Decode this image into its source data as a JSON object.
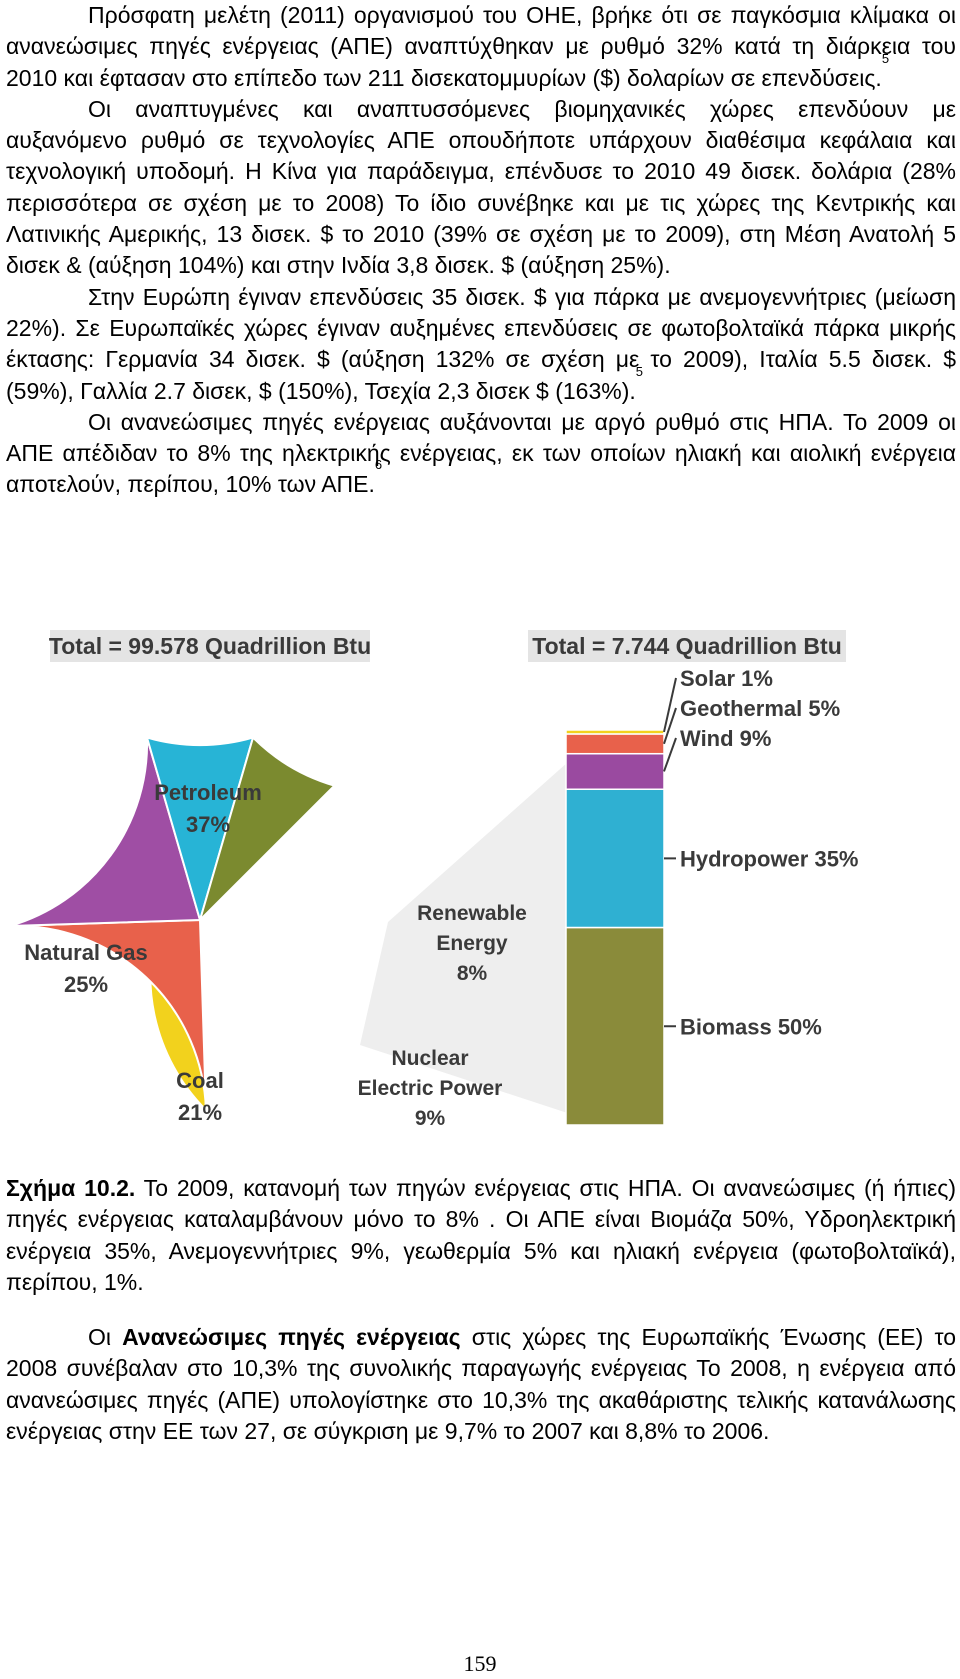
{
  "text": {
    "p1": "Πρόσφατη μελέτη (2011) οργανισμού του ΟΗΕ, βρήκε ότι σε παγκόσμια κλίμακα οι ανανεώσιμες πηγές ενέργειας (ΑΠΕ) αναπτύχθηκαν με ρυθμό 32% κατά τη διάρκεια του 2010 και έφτασαν στο επίπεδο των 211 δισεκατομμυρίων ($) δολαρίων σε επενδύσεις.",
    "p1_ref": "5",
    "p2": "Οι αναπτυγμένες και αναπτυσσόμενες βιομηχανικές χώρες επενδύουν με αυξανόμενο ρυθμό σε τεχνολογίες ΑΠΕ οπουδήποτε υπάρχουν διαθέσιμα κεφάλαια και τεχνολογική υποδομή. Η Κίνα για παράδειγμα, επένδυσε το 2010 49 δισεκ. δολάρια (28% περισσότερα σε σχέση με το 2008) Το ίδιο συνέβηκε και με τις χώρες της Κεντρικής και Λατινικής Αμερικής, 13 δισεκ. $ το 2010 (39% σε σχέση με το 2009), στη Μέση Ανατολή 5 δισεκ & (αύξηση 104%) και στην Ινδία 3,8 δισεκ. $ (αύξηση 25%).",
    "p3": "Στην Ευρώπη έγιναν επενδύσεις 35 δισεκ. $ για πάρκα με ανεμογεννήτριες (μείωση 22%). Σε Ευρωπαϊκές χώρες έγιναν αυξημένες επενδύσεις σε φωτοβολταϊκά πάρκα μικρής έκτασης: Γερμανία 34 δισεκ. $ (αύξηση 132% σε σχέση με το 2009), Ιταλία 5.5 δισεκ. $ (59%), Γαλλία 2.7 δισεκ, $ (150%), Τσεχία 2,3 δισεκ $ (163%).",
    "p3_ref": "5",
    "p4": "Οι ανανεώσιμες πηγές ενέργειας αυξάνονται με αργό ρυθμό στις ΗΠΑ. Το 2009 οι ΑΠΕ απέδιδαν το 8% της ηλεκτρικής ενέργειας, εκ των οποίων ηλιακή και αιολική ενέργεια αποτελούν, περίπου, 10% των ΑΠΕ.",
    "p4_ref": "6",
    "caption_label": "Σχήμα 10.2.",
    "caption_text": " Το 2009, κατανομή των πηγών ενέργειας στις ΗΠΑ. Οι ανανεώσιμες (ή ήπιες) πηγές ενέργειας καταλαμβάνουν μόνο το 8% . Οι ΑΠΕ είναι Βιομάζα 50%, Υδροηλεκτρική ενέργεια 35%, Ανεμογεννήτριες 9%, γεωθερμία 5% και ηλιακή ενέργεια (φωτοβολταϊκά), περίπου, 1%.",
    "p5_start": "Οι ",
    "p5_bold": "Ανανεώσιμες πηγές ενέργειας",
    "p5_rest": " στις χώρες της Ευρωπαϊκής Ένωσης (ΕΕ) το 2008 συνέβαλαν στο 10,3% της συνολικής παραγωγής ενέργειας Το 2008, η ενέργεια από ανανεώσιμες πηγές (ΑΠΕ) υπολογίστηκε στο 10,3% της ακαθάριστης τελικής κατανάλωσης ενέργειας στην ΕΕ των 27, σε σύγκριση με 9,7% το 2007 και 8,8% το 2006.",
    "page_number": "159"
  },
  "chart_data": [
    {
      "type": "pie",
      "title": "Total = 99.578 Quadrillion Btu",
      "slices": [
        {
          "label": "Petroleum",
          "pct_label": "37%",
          "value": 37,
          "color": "#f2d21d"
        },
        {
          "label": "Natural Gas",
          "pct_label": "25%",
          "value": 25,
          "color": "#e8614b"
        },
        {
          "label": "Coal",
          "pct_label": "21%",
          "value": 21,
          "color": "#9f4ea4"
        },
        {
          "label": "Nuclear Electric Power",
          "pct_label": "9%",
          "value": 9,
          "color": "#27b4d6"
        },
        {
          "label": "Renewable Energy",
          "pct_label": "8%",
          "value": 8,
          "color": "#7b8a2f"
        }
      ]
    },
    {
      "type": "bar",
      "stacked": true,
      "title": "Total = 7.744 Quadrillion Btu",
      "segments": [
        {
          "label": "Biomass",
          "pct_label": "50%",
          "value": 50,
          "color": "#8a8b3a"
        },
        {
          "label": "Hydropower",
          "pct_label": "35%",
          "value": 35,
          "color": "#2fb0d2"
        },
        {
          "label": "Wind",
          "pct_label": "9%",
          "value": 9,
          "color": "#9a4aa0"
        },
        {
          "label": "Geothermal",
          "pct_label": "5%",
          "value": 5,
          "color": "#e8614b"
        },
        {
          "label": "Solar",
          "pct_label": "1%",
          "value": 1,
          "color": "#f2d21d"
        }
      ]
    }
  ]
}
